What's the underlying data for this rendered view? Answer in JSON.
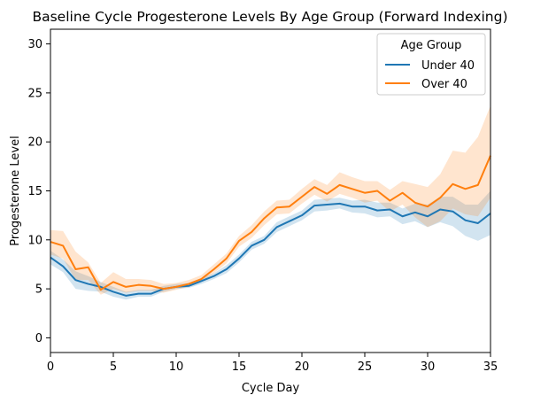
{
  "chart_data": {
    "type": "line",
    "title": "Baseline Cycle Progesterone Levels By Age Group (Forward Indexing)",
    "xlabel": "Cycle Day",
    "ylabel": "Progesterone Level",
    "xlim": [
      0,
      35
    ],
    "ylim": [
      -1.5,
      31.5
    ],
    "xticks": [
      0,
      5,
      10,
      15,
      20,
      25,
      30,
      35
    ],
    "yticks": [
      0,
      5,
      10,
      15,
      20,
      25,
      30
    ],
    "grid": false,
    "legend": {
      "title": "Age Group",
      "placement": "top-right"
    },
    "x": [
      0,
      1,
      2,
      3,
      4,
      5,
      6,
      7,
      8,
      9,
      10,
      11,
      12,
      13,
      14,
      15,
      16,
      17,
      18,
      19,
      20,
      21,
      22,
      23,
      24,
      25,
      26,
      27,
      28,
      29,
      30,
      31,
      32,
      33,
      34,
      35
    ],
    "series": [
      {
        "name": "Under 40",
        "color": "#1f77b4",
        "values": [
          8.2,
          7.3,
          5.9,
          5.5,
          5.2,
          4.7,
          4.3,
          4.5,
          4.5,
          5.0,
          5.2,
          5.3,
          5.8,
          6.3,
          7.0,
          8.1,
          9.4,
          10.0,
          11.3,
          11.9,
          12.5,
          13.5,
          13.6,
          13.7,
          13.4,
          13.4,
          13.0,
          13.1,
          12.4,
          12.8,
          12.4,
          13.1,
          12.9,
          12.0,
          11.7,
          12.7
        ],
        "ci_low": [
          7.5,
          6.7,
          5.0,
          4.8,
          4.7,
          4.2,
          3.9,
          4.2,
          4.2,
          4.7,
          5.0,
          5.1,
          5.5,
          6.0,
          6.6,
          7.7,
          9.0,
          9.6,
          10.8,
          11.4,
          12.0,
          12.9,
          13.0,
          13.2,
          12.8,
          12.7,
          12.3,
          12.4,
          11.6,
          11.9,
          11.3,
          11.8,
          11.4,
          10.4,
          9.9,
          10.5
        ],
        "ci_high": [
          8.9,
          8.0,
          6.8,
          6.3,
          5.7,
          5.2,
          4.7,
          4.9,
          4.9,
          5.3,
          5.5,
          5.6,
          6.1,
          6.6,
          7.4,
          8.5,
          9.8,
          10.4,
          11.8,
          12.4,
          13.0,
          14.1,
          14.2,
          14.3,
          14.0,
          14.1,
          13.8,
          13.8,
          13.2,
          13.7,
          13.6,
          14.4,
          14.4,
          13.6,
          13.6,
          15.0
        ]
      },
      {
        "name": "Over 40",
        "color": "#ff7f0e",
        "values": [
          9.8,
          9.4,
          7.0,
          7.2,
          4.9,
          5.7,
          5.2,
          5.4,
          5.3,
          5.0,
          5.2,
          5.5,
          6.0,
          7.0,
          8.1,
          9.9,
          10.8,
          12.2,
          13.3,
          13.4,
          14.4,
          15.4,
          14.7,
          15.6,
          15.2,
          14.8,
          15.0,
          14.0,
          14.8,
          13.8,
          13.4,
          14.3,
          15.7,
          15.2,
          15.6,
          18.6
        ],
        "ci_low": [
          8.5,
          8.1,
          5.9,
          5.9,
          4.4,
          5.0,
          4.6,
          4.8,
          4.8,
          4.6,
          4.9,
          5.2,
          5.7,
          6.6,
          7.6,
          9.3,
          10.2,
          11.5,
          12.6,
          12.7,
          13.7,
          14.6,
          13.9,
          14.7,
          14.3,
          13.8,
          14.0,
          12.9,
          13.6,
          12.3,
          11.3,
          11.9,
          13.2,
          12.6,
          12.4,
          14.3
        ],
        "ci_high": [
          11.0,
          10.9,
          8.8,
          7.7,
          5.6,
          6.7,
          6.0,
          6.0,
          5.9,
          5.5,
          5.6,
          5.9,
          6.4,
          7.5,
          8.6,
          10.4,
          11.5,
          12.9,
          14.0,
          14.1,
          15.2,
          16.2,
          15.6,
          16.9,
          16.4,
          16.0,
          16.0,
          15.1,
          16.0,
          15.7,
          15.4,
          16.7,
          19.1,
          18.9,
          20.5,
          23.7
        ]
      }
    ]
  }
}
